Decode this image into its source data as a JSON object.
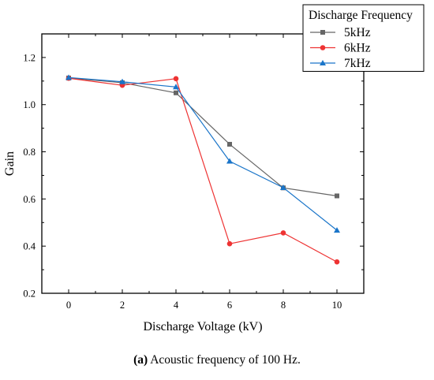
{
  "chart_data": {
    "type": "line",
    "xlabel": "Discharge Voltage (kV)",
    "ylabel": "Gain",
    "x": [
      0,
      2,
      4,
      6,
      8,
      10
    ],
    "xlim": [
      -1.0,
      11.0
    ],
    "ylim": [
      0.2,
      1.3
    ],
    "xticks": [
      "0",
      "2",
      "4",
      "6",
      "8",
      "10"
    ],
    "yticks": [
      "0.2",
      "0.4",
      "0.6",
      "0.8",
      "1.0",
      "1.2"
    ],
    "legend_title": "Discharge Frequency",
    "legend_position": "top-right",
    "grid": false,
    "series": [
      {
        "name": "5kHz",
        "color": "#666666",
        "marker": "square",
        "values": [
          1.113,
          1.093,
          1.05,
          0.832,
          0.647,
          0.613
        ]
      },
      {
        "name": "6kHz",
        "color": "#ee3333",
        "marker": "circle",
        "values": [
          1.112,
          1.082,
          1.11,
          0.41,
          0.456,
          0.333
        ]
      },
      {
        "name": "7kHz",
        "color": "#1a75c9",
        "marker": "triangle",
        "values": [
          1.115,
          1.097,
          1.075,
          0.76,
          0.648,
          0.467
        ]
      }
    ]
  },
  "caption": {
    "label": "(a)",
    "text": " Acoustic frequency of 100 Hz."
  }
}
